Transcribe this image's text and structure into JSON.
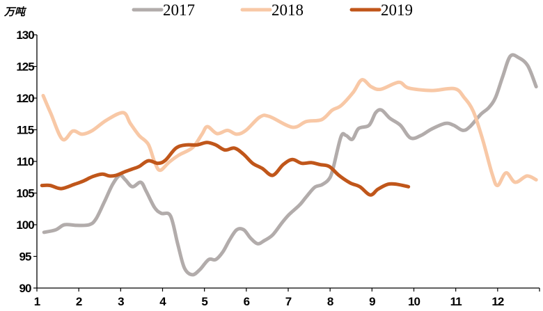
{
  "chart_data": {
    "type": "line",
    "title": "",
    "ylabel": "万吨",
    "xlabel": "",
    "xlim": [
      1,
      13
    ],
    "ylim": [
      90,
      130
    ],
    "x_ticks": [
      "1",
      "2",
      "3",
      "4",
      "5",
      "6",
      "7",
      "8",
      "9",
      "10",
      "11",
      "12"
    ],
    "y_ticks": [
      "90",
      "95",
      "100",
      "105",
      "110",
      "115",
      "120",
      "125",
      "130"
    ],
    "grid": false,
    "legend_position": "top-center",
    "series": [
      {
        "name": "2017",
        "color": "#b2acab",
        "x": [
          1.17,
          1.45,
          1.66,
          1.95,
          2.25,
          2.41,
          2.61,
          2.81,
          2.98,
          3.11,
          3.28,
          3.48,
          3.61,
          3.81,
          3.97,
          4.19,
          4.36,
          4.52,
          4.71,
          4.89,
          5.1,
          5.27,
          5.44,
          5.6,
          5.77,
          5.94,
          6.1,
          6.27,
          6.43,
          6.63,
          6.85,
          7.02,
          7.27,
          7.43,
          7.63,
          7.8,
          7.96,
          8.06,
          8.26,
          8.38,
          8.53,
          8.68,
          8.93,
          9.09,
          9.23,
          9.43,
          9.68,
          9.92,
          10.17,
          10.42,
          10.75,
          10.95,
          11.17,
          11.34,
          11.59,
          11.79,
          11.95,
          12.12,
          12.3,
          12.5,
          12.72,
          12.92
        ],
        "y": [
          98.8,
          99.2,
          100.0,
          99.9,
          100.0,
          100.9,
          103.6,
          106.4,
          107.8,
          107.1,
          106.0,
          106.7,
          105.3,
          102.7,
          101.8,
          101.4,
          97.0,
          93.2,
          92.1,
          92.9,
          94.5,
          94.5,
          95.7,
          97.6,
          99.2,
          99.2,
          97.9,
          97.0,
          97.5,
          98.4,
          100.3,
          101.6,
          103.1,
          104.4,
          105.9,
          106.3,
          107.1,
          108.6,
          113.9,
          114.1,
          113.5,
          115.2,
          115.7,
          117.7,
          118.1,
          116.8,
          115.7,
          113.7,
          114.1,
          115.1,
          116.0,
          115.7,
          114.9,
          115.5,
          117.4,
          118.5,
          120.1,
          123.4,
          126.6,
          126.4,
          125.1,
          121.8
        ]
      },
      {
        "name": "2018",
        "color": "#f8c8a6",
        "x": [
          1.15,
          1.33,
          1.61,
          1.86,
          2.08,
          2.33,
          2.66,
          3.06,
          3.23,
          3.44,
          3.66,
          3.81,
          3.94,
          4.16,
          4.39,
          4.72,
          4.94,
          5.07,
          5.3,
          5.55,
          5.77,
          5.99,
          6.32,
          6.55,
          7.1,
          7.43,
          7.8,
          8.05,
          8.26,
          8.55,
          8.76,
          8.98,
          9.21,
          9.64,
          9.87,
          10.42,
          10.97,
          11.2,
          11.42,
          11.64,
          11.87,
          12.0,
          12.2,
          12.42,
          12.7,
          12.92
        ],
        "y": [
          120.4,
          117.6,
          113.5,
          114.8,
          114.3,
          114.9,
          116.5,
          117.7,
          116.0,
          114.1,
          112.7,
          109.9,
          108.6,
          109.9,
          111.0,
          112.2,
          114.3,
          115.5,
          114.4,
          114.9,
          114.3,
          114.9,
          117.0,
          117.1,
          115.4,
          116.3,
          116.6,
          118.1,
          118.8,
          120.9,
          122.9,
          121.8,
          121.4,
          122.5,
          121.6,
          121.2,
          121.5,
          120.1,
          117.9,
          113.5,
          108.0,
          106.2,
          108.2,
          106.7,
          107.7,
          107.1
        ]
      },
      {
        "name": "2019",
        "color": "#c0561a",
        "x": [
          1.12,
          1.32,
          1.58,
          1.9,
          2.11,
          2.33,
          2.56,
          2.73,
          2.89,
          3.11,
          3.28,
          3.44,
          3.66,
          3.89,
          4.07,
          4.32,
          4.56,
          4.82,
          5.06,
          5.27,
          5.49,
          5.72,
          5.94,
          6.15,
          6.38,
          6.63,
          6.88,
          7.1,
          7.32,
          7.55,
          7.76,
          7.98,
          8.21,
          8.48,
          8.71,
          8.96,
          9.14,
          9.38,
          9.59,
          9.87
        ],
        "y": [
          106.2,
          106.2,
          105.7,
          106.4,
          106.9,
          107.6,
          108.0,
          107.7,
          107.8,
          108.4,
          108.8,
          109.2,
          110.1,
          109.7,
          110.2,
          112.1,
          112.6,
          112.6,
          113.0,
          112.6,
          111.8,
          112.1,
          111.1,
          109.7,
          108.9,
          107.8,
          109.5,
          110.3,
          109.7,
          109.8,
          109.5,
          109.2,
          107.8,
          106.6,
          106.0,
          104.7,
          105.6,
          106.4,
          106.4,
          106.0
        ]
      }
    ]
  }
}
